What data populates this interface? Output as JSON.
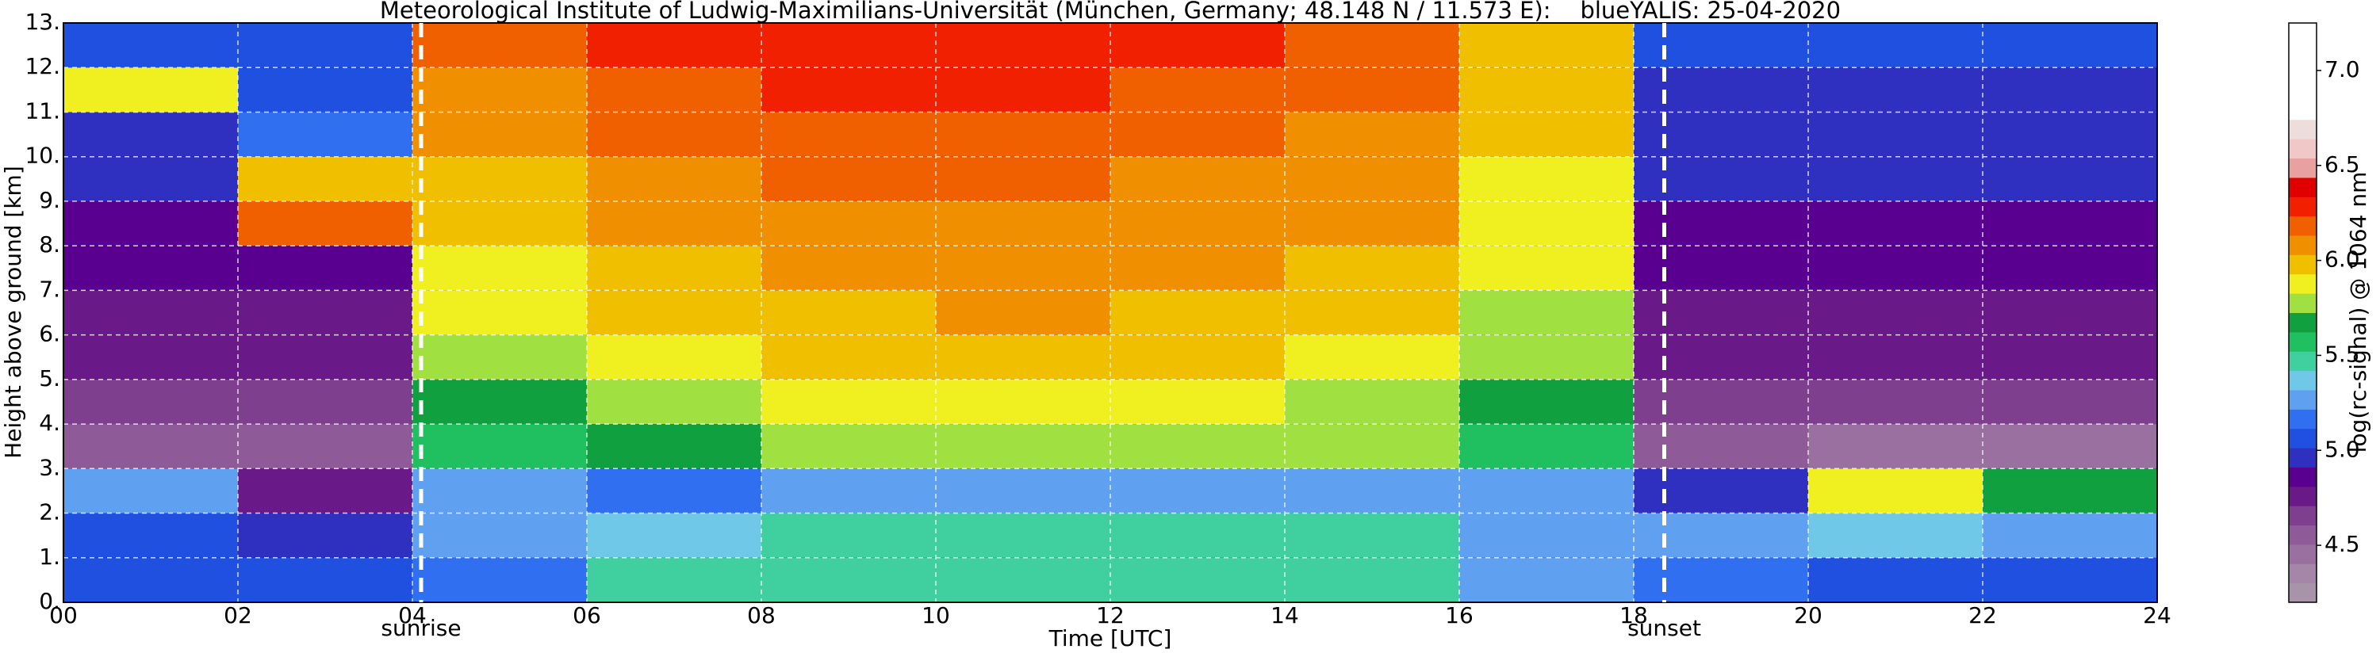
{
  "chart_data": {
    "type": "heatmap",
    "title": "Meteorological Institute of Ludwig-Maximilians-Universität (München, Germany; 48.148 N / 11.573 E):    blueYALIS: 25-04-2020",
    "x_label": "Time [UTC]",
    "y_label": "Height above ground [km]",
    "colorbar_label": "log(rc-signal) @ 1064 nm",
    "xlim": [
      0,
      24
    ],
    "ylim": [
      0,
      13
    ],
    "xticks": [
      {
        "value": 0,
        "label": "00"
      },
      {
        "value": 2,
        "label": "02"
      },
      {
        "value": 4,
        "label": "04"
      },
      {
        "value": 6,
        "label": "06"
      },
      {
        "value": 8,
        "label": "08"
      },
      {
        "value": 10,
        "label": "10"
      },
      {
        "value": 12,
        "label": "12"
      },
      {
        "value": 14,
        "label": "14"
      },
      {
        "value": 16,
        "label": "16"
      },
      {
        "value": 18,
        "label": "18"
      },
      {
        "value": 20,
        "label": "20"
      },
      {
        "value": 22,
        "label": "22"
      },
      {
        "value": 24,
        "label": "24"
      }
    ],
    "yticks": [
      {
        "value": 0,
        "label": "0."
      },
      {
        "value": 1,
        "label": "1."
      },
      {
        "value": 2,
        "label": "2."
      },
      {
        "value": 3,
        "label": "3."
      },
      {
        "value": 4,
        "label": "4."
      },
      {
        "value": 5,
        "label": "5."
      },
      {
        "value": 6,
        "label": "6."
      },
      {
        "value": 7,
        "label": "7."
      },
      {
        "value": 8,
        "label": "8."
      },
      {
        "value": 9,
        "label": "9."
      },
      {
        "value": 10,
        "label": "10."
      },
      {
        "value": 11,
        "label": "11."
      },
      {
        "value": 12,
        "label": "12."
      },
      {
        "value": 13,
        "label": "13."
      }
    ],
    "grid": true,
    "xbins": [
      0,
      2,
      4,
      6,
      8,
      10,
      12,
      14,
      16,
      18,
      20,
      22,
      24
    ],
    "ybins": [
      0,
      1,
      2,
      3,
      4,
      5,
      6,
      7,
      8,
      9,
      10,
      11,
      12,
      13
    ],
    "z": [
      [
        5.1,
        5.1,
        5.2,
        5.5,
        5.5,
        5.5,
        5.5,
        5.5,
        5.3,
        5.2,
        5.1,
        5.1
      ],
      [
        5.1,
        5.0,
        5.3,
        5.4,
        5.45,
        5.5,
        5.5,
        5.45,
        5.3,
        5.3,
        5.35,
        5.3
      ],
      [
        5.3,
        4.8,
        5.3,
        5.2,
        5.3,
        5.3,
        5.3,
        5.3,
        5.3,
        5.0,
        5.9,
        5.7
      ],
      [
        4.6,
        4.6,
        5.6,
        5.7,
        5.8,
        5.8,
        5.8,
        5.8,
        5.6,
        4.6,
        4.5,
        4.5
      ],
      [
        4.7,
        4.7,
        5.7,
        5.8,
        5.9,
        5.9,
        5.9,
        5.8,
        5.7,
        4.7,
        4.7,
        4.7
      ],
      [
        4.75,
        4.75,
        5.8,
        5.9,
        5.95,
        6.0,
        5.95,
        5.9,
        5.75,
        4.75,
        4.75,
        4.75
      ],
      [
        4.8,
        4.8,
        5.85,
        5.95,
        6.0,
        6.05,
        6.0,
        5.95,
        5.8,
        4.8,
        4.8,
        4.8
      ],
      [
        4.85,
        4.85,
        5.9,
        6.0,
        6.05,
        6.1,
        6.05,
        6.0,
        5.85,
        4.85,
        4.85,
        4.85
      ],
      [
        4.9,
        6.2,
        5.95,
        6.05,
        6.1,
        6.1,
        6.1,
        6.05,
        5.9,
        4.9,
        4.9,
        4.9
      ],
      [
        4.95,
        6.0,
        6.0,
        6.1,
        6.15,
        6.15,
        6.1,
        6.05,
        5.9,
        4.95,
        4.95,
        4.95
      ],
      [
        5.0,
        5.2,
        6.05,
        6.15,
        6.2,
        6.2,
        6.15,
        6.1,
        5.95,
        5.0,
        5.0,
        5.0
      ],
      [
        5.9,
        5.1,
        6.1,
        6.2,
        6.25,
        6.25,
        6.2,
        6.15,
        6.0,
        5.0,
        5.0,
        5.0
      ],
      [
        5.1,
        5.1,
        6.15,
        6.25,
        6.3,
        6.3,
        6.25,
        6.2,
        6.0,
        5.05,
        5.05,
        5.05
      ]
    ],
    "clim": [
      4.2,
      7.25
    ],
    "colorbar_ticks": [
      4.5,
      {
        "value": 5,
        "label": "5.0"
      },
      5.5,
      {
        "value": 6,
        "label": "6.0"
      },
      6.5,
      {
        "value": 7,
        "label": "7.0"
      }
    ],
    "colors": [
      "#a894a8",
      "#a586a8",
      "#9a70a0",
      "#8f5a98",
      "#7f3f8f",
      "#6a1a88",
      "#5a0090",
      "#3030c0",
      "#2050e0",
      "#3070f0",
      "#60a0f0",
      "#70c8e8",
      "#40d0a0",
      "#20c060",
      "#10a040",
      "#a0e040",
      "#f0f020",
      "#f0c000",
      "#f09000",
      "#f06000",
      "#f02000",
      "#e00000",
      "#e8a0a0",
      "#f0c8c8",
      "#eedddd",
      "#ffffff",
      "#ffffff",
      "#ffffff",
      "#ffffff",
      "#ffffff"
    ],
    "annotations": [
      {
        "text": "sunrise",
        "x": 4.1
      },
      {
        "text": "sunset",
        "x": 18.35
      }
    ]
  }
}
